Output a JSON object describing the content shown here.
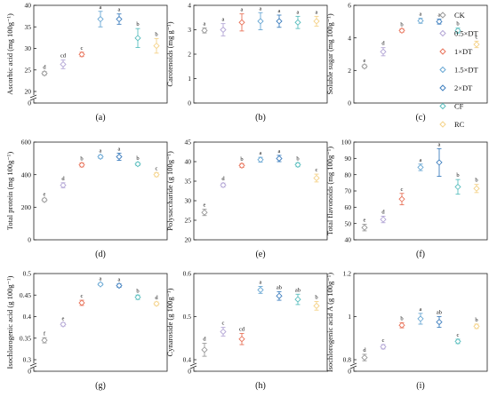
{
  "legend": {
    "position": "right",
    "entries": [
      {
        "label": "CK",
        "color": "#999999"
      },
      {
        "label": "0.5×DT",
        "color": "#b4a7d6"
      },
      {
        "label": "1×DT",
        "color": "#e8735a"
      },
      {
        "label": "1.5×DT",
        "color": "#6aa8d4"
      },
      {
        "label": "2×DT",
        "color": "#3f7fbf"
      },
      {
        "label": "CF",
        "color": "#5bbfbf"
      },
      {
        "label": "RC",
        "color": "#f5d38a"
      }
    ]
  },
  "chart_data": [
    {
      "type": "scatter",
      "panel": "(a)",
      "ylabel": "Ascorbic acid (mg 100g⁻¹)",
      "ylim": [
        0,
        40
      ],
      "yticks": [
        0,
        20,
        25,
        30,
        35,
        40
      ],
      "axis_break": [
        0,
        20
      ],
      "values": [
        24.2,
        26.3,
        28.6,
        36.8,
        36.8,
        32.4,
        30.6
      ],
      "errors": [
        0.4,
        1.0,
        0.5,
        1.8,
        1.2,
        2.2,
        1.7
      ],
      "letters": [
        "d",
        "cd",
        "c",
        "a",
        "a",
        "b",
        "b"
      ]
    },
    {
      "type": "scatter",
      "panel": "(b)",
      "ylabel": "Carotenoids (mg g⁻¹)",
      "ylim": [
        0,
        4
      ],
      "yticks": [
        0,
        1,
        2,
        3,
        4
      ],
      "values": [
        2.97,
        3.0,
        3.3,
        3.35,
        3.35,
        3.3,
        3.35
      ],
      "errors": [
        0.1,
        0.25,
        0.35,
        0.35,
        0.25,
        0.25,
        0.2
      ],
      "letters": [
        "a",
        "a",
        "a",
        "a",
        "a",
        "a",
        "a"
      ]
    },
    {
      "type": "scatter",
      "panel": "(c)",
      "ylabel": "Soluble sugar (mg 100g⁻¹)",
      "ylim": [
        0,
        6
      ],
      "yticks": [
        0,
        2,
        4,
        6
      ],
      "values": [
        2.25,
        3.15,
        4.45,
        5.05,
        5.0,
        4.45,
        3.6
      ],
      "errors": [
        0.1,
        0.25,
        0.1,
        0.15,
        0.15,
        0.15,
        0.2
      ],
      "letters": [
        "e",
        "d",
        "b",
        "a",
        "a",
        "b",
        "c"
      ]
    },
    {
      "type": "scatter",
      "panel": "(d)",
      "ylabel": "Total protein (mg 100g⁻¹)",
      "ylim": [
        0,
        600
      ],
      "yticks": [
        0,
        200,
        400,
        600
      ],
      "values": [
        245,
        335,
        460,
        510,
        510,
        465,
        400
      ],
      "errors": [
        10,
        15,
        12,
        10,
        22,
        10,
        12
      ],
      "letters": [
        "e",
        "d",
        "b",
        "a",
        "a",
        "b",
        "c"
      ]
    },
    {
      "type": "scatter",
      "panel": "(e)",
      "ylabel": "Polysaccharide (g 100g⁻¹)",
      "ylim": [
        20,
        45
      ],
      "yticks": [
        20,
        25,
        30,
        35,
        40,
        45
      ],
      "values": [
        27.0,
        34.0,
        39.0,
        40.5,
        40.8,
        39.2,
        35.8
      ],
      "errors": [
        0.8,
        0.5,
        0.5,
        0.6,
        0.8,
        0.5,
        1.0
      ],
      "letters": [
        "e",
        "d",
        "b",
        "a",
        "a",
        "b",
        "c"
      ]
    },
    {
      "type": "scatter",
      "panel": "(f)",
      "ylabel": "Total flavonoids (mg 100g⁻¹)",
      "ylim": [
        40,
        100
      ],
      "yticks": [
        40,
        50,
        60,
        70,
        80,
        90,
        100
      ],
      "values": [
        47.5,
        52.5,
        65.0,
        84.5,
        87.5,
        72.5,
        71.5
      ],
      "errors": [
        2.0,
        2.0,
        3.5,
        2.0,
        8.5,
        4.5,
        2.5
      ],
      "letters": [
        "e",
        "d",
        "c",
        "a",
        "a",
        "b",
        "b"
      ]
    },
    {
      "type": "scatter",
      "panel": "(g)",
      "ylabel": "Isochlorogenic acid (g 100g⁻¹)",
      "ylim": [
        0,
        0.5
      ],
      "yticks": [
        0,
        0.3,
        0.35,
        0.4,
        0.45,
        0.5
      ],
      "axis_break": [
        0,
        0.3
      ],
      "values": [
        0.345,
        0.382,
        0.432,
        0.475,
        0.472,
        0.445,
        0.43
      ],
      "errors": [
        0.006,
        0.004,
        0.006,
        0.003,
        0.004,
        0.005,
        0.004
      ],
      "letters": [
        "f",
        "e",
        "c",
        "a",
        "a",
        "b",
        "d"
      ]
    },
    {
      "type": "scatter",
      "panel": "(h)",
      "ylabel": "Cynaroside (g 100g⁻¹)",
      "ylim": [
        0,
        0.6
      ],
      "yticks": [
        0,
        0.4,
        0.5,
        0.6
      ],
      "axis_break": [
        0,
        0.4
      ],
      "values": [
        0.423,
        0.465,
        0.448,
        0.562,
        0.548,
        0.54,
        0.525
      ],
      "errors": [
        0.015,
        0.01,
        0.013,
        0.008,
        0.01,
        0.012,
        0.01
      ],
      "letters": [
        "d",
        "c",
        "cd",
        "a",
        "ab",
        "ab",
        "b"
      ]
    },
    {
      "type": "scatter",
      "panel": "(i)",
      "ylabel": "Isochlorogenic acid A (g 100g⁻¹)",
      "ylim": [
        0,
        1.2
      ],
      "yticks": [
        0,
        0.8,
        1.0,
        1.2
      ],
      "axis_break": [
        0,
        0.8
      ],
      "values": [
        0.81,
        0.86,
        0.96,
        0.99,
        0.975,
        0.885,
        0.955
      ],
      "errors": [
        0.015,
        0.01,
        0.012,
        0.025,
        0.025,
        0.01,
        0.01
      ],
      "letters": [
        "d",
        "c",
        "b",
        "a",
        "ab",
        "c",
        "b"
      ]
    }
  ]
}
